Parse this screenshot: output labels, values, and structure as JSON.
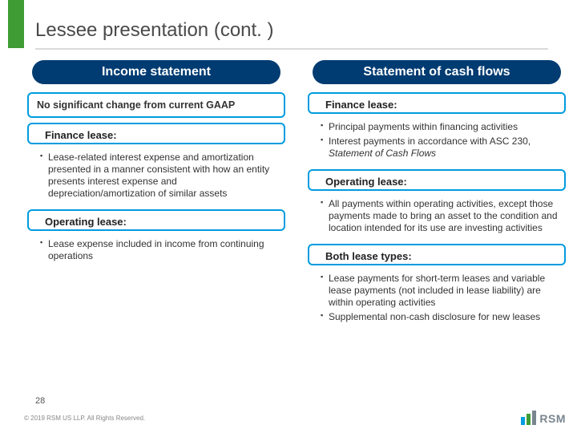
{
  "colors": {
    "accent_green": "#3f9c35",
    "accent_blue": "#009cde",
    "pill_navy": "#003b71",
    "rule_gray": "#d9d9d9",
    "text_gray": "#4a4a4a",
    "logo_gray": "#7a868f"
  },
  "title": "Lessee presentation (cont. )",
  "page_number": "28",
  "copyright": "© 2019 RSM US LLP. All Rights Reserved.",
  "logo_text": "RSM",
  "left": {
    "heading": "Income statement",
    "box1": "No significant change from current GAAP",
    "label1": "Finance lease:",
    "bullets1": [
      "Lease-related interest expense and amortization presented in a manner consistent with how an entity presents interest expense and depreciation/amortization of similar assets"
    ],
    "label2": "Operating lease:",
    "bullets2": [
      "Lease expense included in income from continuing operations"
    ]
  },
  "right": {
    "heading": "Statement of cash flows",
    "label1": "Finance lease:",
    "bullets1": [
      "Principal payments within financing activities",
      "Interest payments in accordance with ASC 230, <em>Statement of Cash Flows</em>"
    ],
    "label2": "Operating lease:",
    "bullets2": [
      "All payments within operating activities, except those payments made to bring an asset to the condition and location intended for its use are investing activities"
    ],
    "label3": "Both lease types:",
    "bullets3": [
      "Lease payments for short-term leases and variable lease payments (not included in lease liability) are within operating activities",
      "Supplemental non-cash disclosure for new leases"
    ]
  }
}
